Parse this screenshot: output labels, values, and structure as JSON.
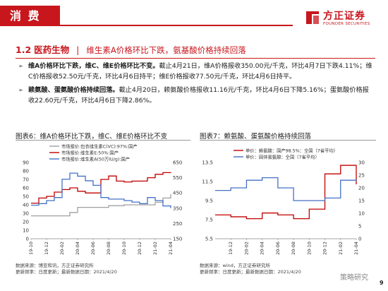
{
  "header": {
    "tag": "消 费",
    "logo_cn": "方正证券",
    "logo_en": "FOUNDER SECURITIES"
  },
  "section": {
    "number": "1.2",
    "subject": "医药生物",
    "divider": "|",
    "description": "维生素A价格环比下跌，氨基酸价格持续回落"
  },
  "bullets": [
    {
      "bold": "维A价格环比下跌，维C、维E价格环比不变。",
      "text": "截止4月21日，维A价格报收350.00元/千克，环比4月7日下跌4.11%；维C价格报收52.50元/千克，环比4月6日持平；维E价格报收77.50元/千克，环比4月6日持平。"
    },
    {
      "bold": "赖氨酸、蛋氨酸价格持续回落。",
      "text": "截止4月20日，赖氨酸价格报收11.16元/千克，环比4月6日下降5.16%；蛋氨酸价格报收22.60元/千克，环比4月6日下降2.86%。"
    }
  ],
  "chart_data": [
    {
      "type": "line",
      "title": "图表6：维A价格环比下跌，维C、维E价格环比不变",
      "x": [
        "19-10",
        "19-11",
        "19-12",
        "20-01",
        "20-02",
        "20-03",
        "20-04",
        "20-05",
        "20-06",
        "20-07",
        "20-08",
        "20-09",
        "20-10",
        "20-11",
        "20-12",
        "21-01",
        "21-02",
        "21-03",
        "21-04"
      ],
      "xticks": [
        "19-10",
        "19-12",
        "20-02",
        "20-04",
        "20-06",
        "20-08",
        "20-10",
        "20-12",
        "21-02",
        "21-04"
      ],
      "left_axis": {
        "ticks": [
          "0",
          "10",
          "20",
          "30",
          "40",
          "50",
          "60",
          "70",
          "80",
          "90"
        ],
        "ylim": [
          0,
          90
        ]
      },
      "right_axis": {
        "ticks": [
          "150",
          "250",
          "350",
          "450",
          "550",
          "650"
        ],
        "ylim": [
          150,
          650
        ]
      },
      "series": [
        {
          "name": "市场报价:包衣维生素C(VC):97%:国产",
          "axis": "left",
          "color": "#a0a0a0",
          "values": [
            27,
            27,
            27,
            27,
            27,
            31,
            37,
            37,
            37,
            37,
            39,
            39,
            40,
            40,
            40,
            40,
            43,
            48,
            52.5
          ]
        },
        {
          "name": "市场报价:维生素E:50%:国产",
          "axis": "left",
          "color": "#c00000",
          "values": [
            42,
            48,
            50,
            55,
            58,
            60,
            56,
            54,
            54,
            70,
            74,
            68,
            67,
            68,
            68,
            72,
            76,
            78,
            77.5
          ]
        },
        {
          "name": "市场报价:维生素A(50万IU/g):国产",
          "axis": "right",
          "color": "#4472c4",
          "values": [
            370,
            380,
            400,
            420,
            540,
            580,
            560,
            530,
            500,
            420,
            410,
            410,
            400,
            390,
            380,
            420,
            400,
            365,
            350
          ]
        }
      ],
      "note_lines": [
        "数据来源：博亚和讯，方正证券研究所",
        "更新频率：日度更新；最新数据日期：2021/4/20"
      ]
    },
    {
      "type": "line",
      "title": "图表7：赖氨酸、蛋氨酸价格持续回落",
      "x": [
        "19-10",
        "19-12",
        "20-02",
        "20-04",
        "20-06",
        "20-08",
        "20-10",
        "20-12",
        "21-02",
        "21-04"
      ],
      "xticks": [
        "19-12",
        "20-02",
        "20-04",
        "20-06",
        "20-08",
        "20-10",
        "20-12",
        "21-02",
        "21-04"
      ],
      "left_axis": {
        "ticks": [
          "5.5",
          "7.5",
          "9.5",
          "11.5",
          "13.5"
        ],
        "ylim": [
          5.5,
          13.5
        ]
      },
      "right_axis": {
        "ticks": [
          "0",
          "5",
          "10",
          "15",
          "20",
          "25",
          "30"
        ],
        "ylim": [
          0,
          30
        ]
      },
      "series": [
        {
          "name": "单价：赖氨酸：国产98.5%：全国（7省平均）",
          "axis": "left",
          "color": "#c00000",
          "values": [
            8.0,
            7.8,
            7.6,
            8.2,
            8.0,
            7.6,
            8.6,
            12.3,
            13.2,
            11.2
          ]
        },
        {
          "name": "单价：固体蛋氨酸：全国（7省平均）",
          "axis": "right",
          "color": "#4472c4",
          "values": [
            19,
            20,
            23,
            24,
            20,
            15,
            15,
            16,
            23,
            22.6
          ]
        }
      ],
      "note_lines": [
        "数据来源：wind，方正证券研究所",
        "更新频率：日度更新；最新数据日期：2021/4/20"
      ]
    }
  ],
  "page_number": "9",
  "watermark": "策略研究"
}
